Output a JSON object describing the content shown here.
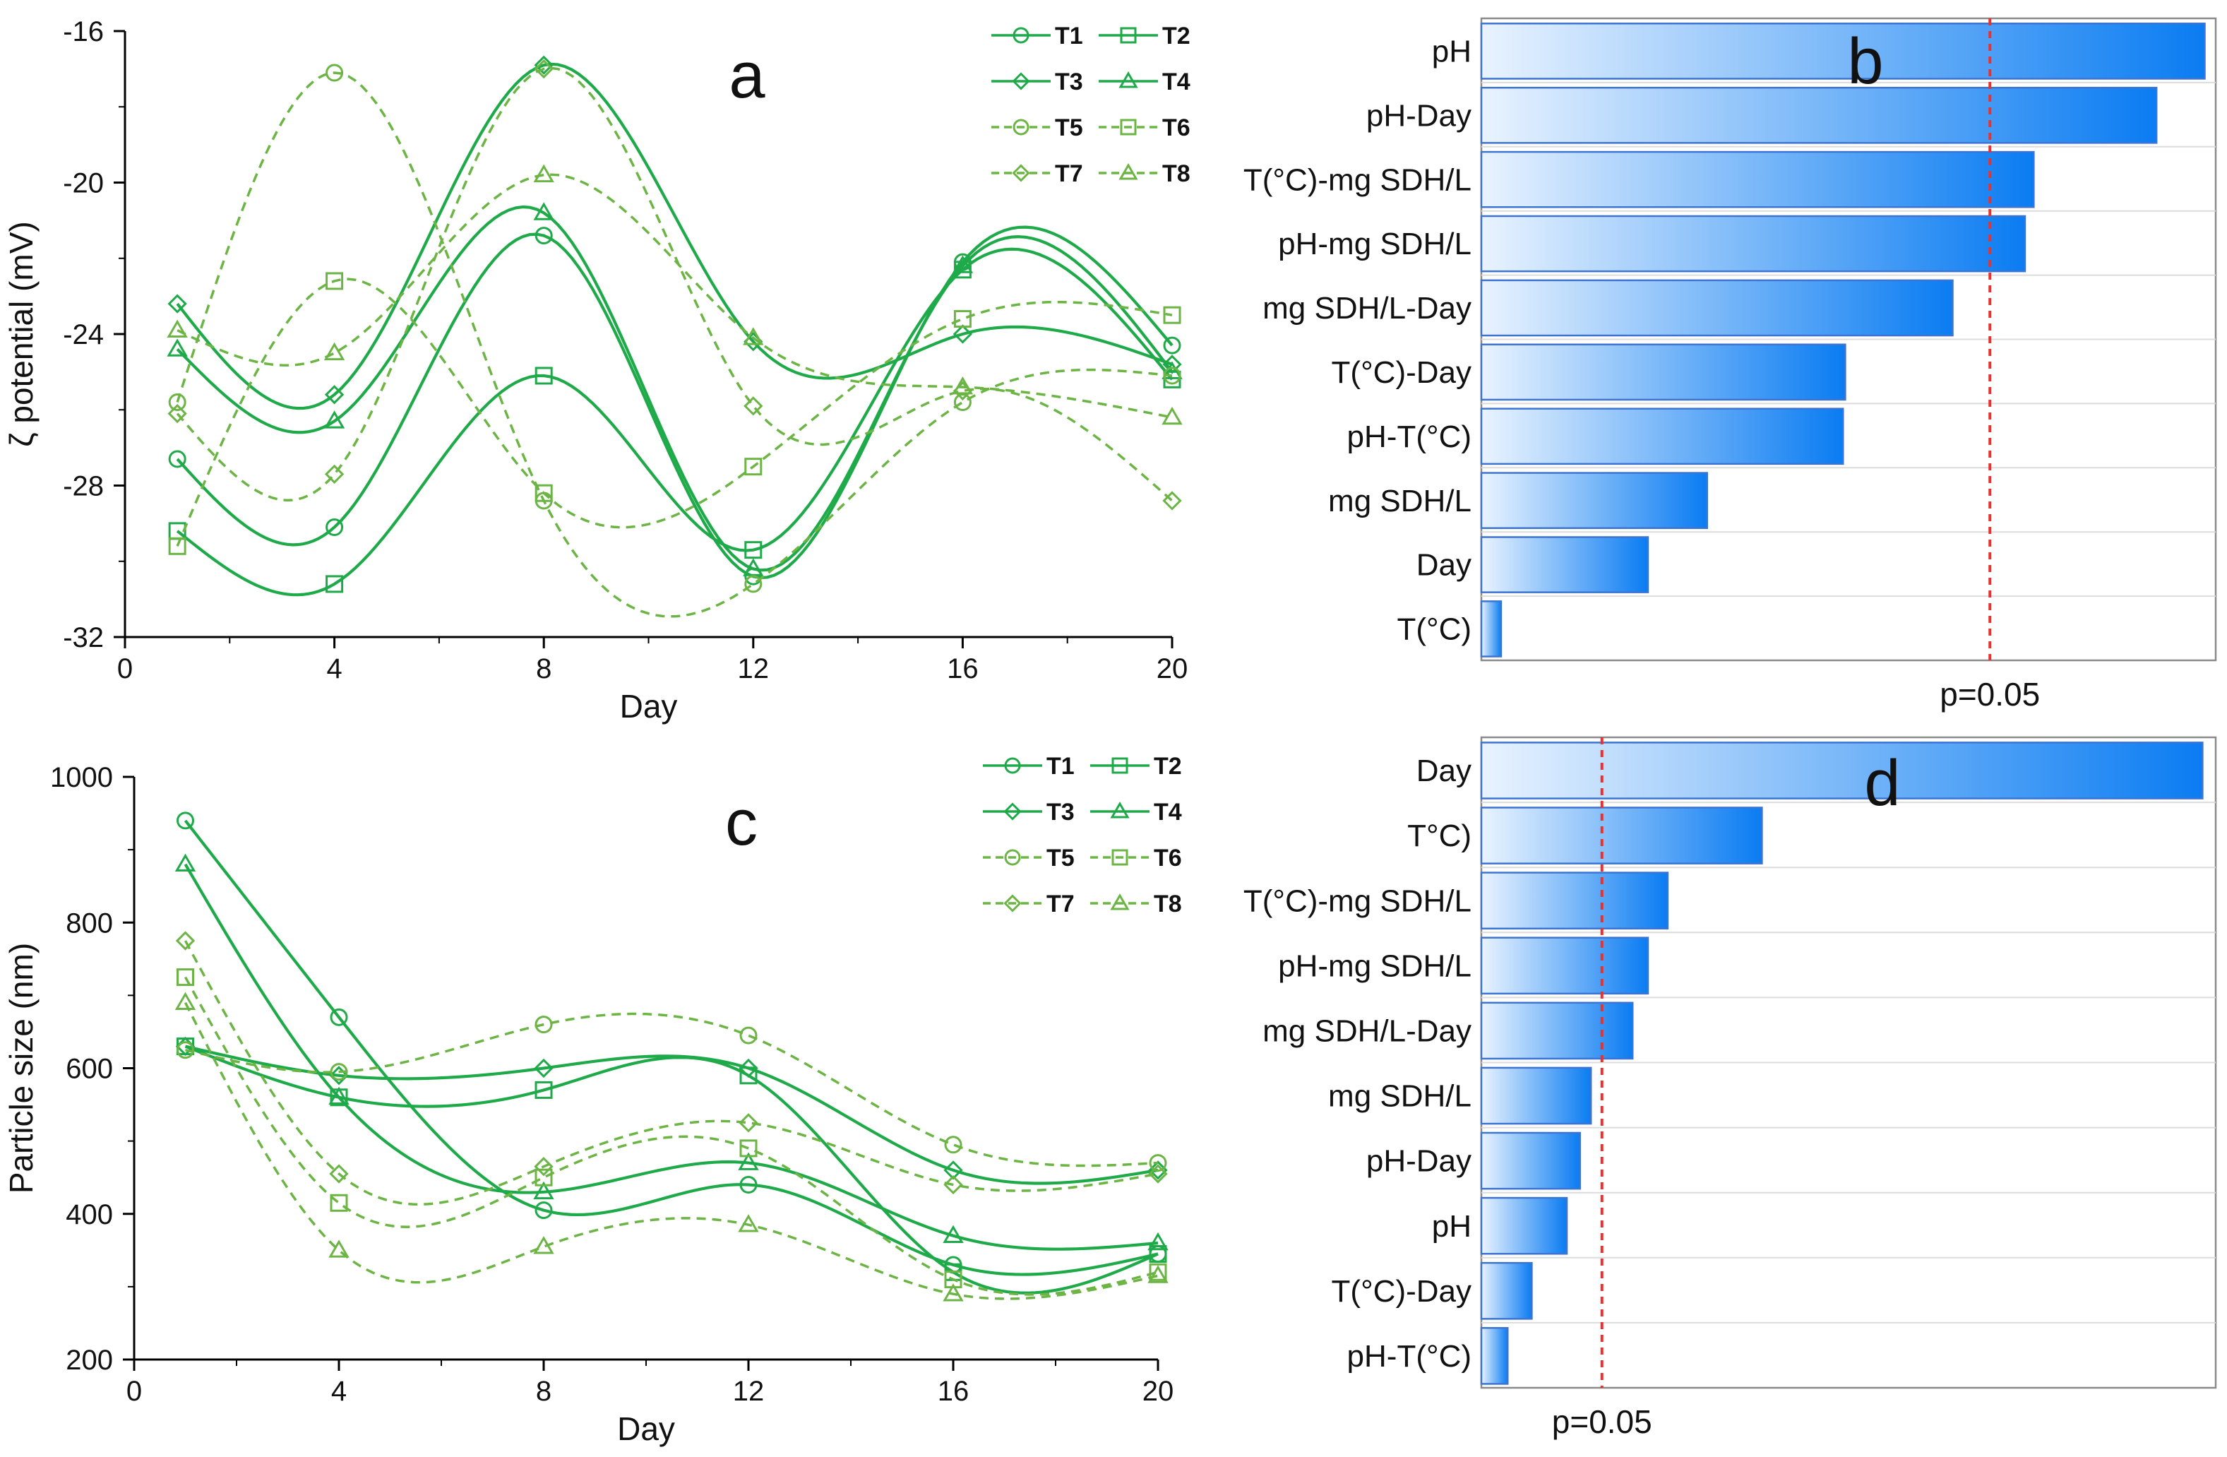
{
  "figure": {
    "colors": {
      "solid": "#1faa4a",
      "dashed": "#6cb545",
      "bar_fill_start": "#e9f3ff",
      "bar_fill_end": "#0a7cf2",
      "bar_edge": "#3d74d2",
      "pline": "#e8322f",
      "axis": "#000000",
      "grid": "#dcdcdc"
    }
  },
  "chart_data": [
    {
      "id": "a",
      "type": "line",
      "panel_label": "a",
      "xlabel": "Day",
      "ylabel": "ζ potential (mV)",
      "xlim": [
        0,
        20
      ],
      "ylim": [
        -32,
        -16
      ],
      "xticks": [
        0,
        4,
        8,
        12,
        16,
        20
      ],
      "yticks": [
        -32,
        -28,
        -24,
        -20,
        -16
      ],
      "x": [
        1,
        4,
        8,
        12,
        16,
        20
      ],
      "legend_position": "top-right",
      "series": [
        {
          "name": "T1",
          "marker": "circle",
          "dash": false,
          "values": [
            -27.3,
            -29.1,
            -21.4,
            -30.4,
            -22.1,
            -24.3
          ]
        },
        {
          "name": "T2",
          "marker": "square",
          "dash": false,
          "values": [
            -29.2,
            -30.6,
            -25.1,
            -29.7,
            -22.3,
            -25.2
          ]
        },
        {
          "name": "T3",
          "marker": "diamond",
          "dash": false,
          "values": [
            -23.2,
            -25.6,
            -16.9,
            -24.2,
            -24.0,
            -24.8
          ]
        },
        {
          "name": "T4",
          "marker": "triangle",
          "dash": false,
          "values": [
            -24.4,
            -26.3,
            -20.8,
            -30.2,
            -22.2,
            -25.0
          ]
        },
        {
          "name": "T5",
          "marker": "circle",
          "dash": true,
          "values": [
            -25.8,
            -17.1,
            -28.4,
            -30.6,
            -25.8,
            -25.1
          ]
        },
        {
          "name": "T6",
          "marker": "square",
          "dash": true,
          "values": [
            -29.6,
            -22.6,
            -28.2,
            -27.5,
            -23.6,
            -23.5
          ]
        },
        {
          "name": "T7",
          "marker": "diamond",
          "dash": true,
          "values": [
            -26.1,
            -27.7,
            -17.0,
            -25.9,
            -25.5,
            -28.4
          ]
        },
        {
          "name": "T8",
          "marker": "triangle",
          "dash": true,
          "values": [
            -23.9,
            -24.5,
            -19.8,
            -24.1,
            -25.4,
            -26.2
          ]
        }
      ]
    },
    {
      "id": "b",
      "type": "bar",
      "orientation": "horizontal",
      "panel_label": "b",
      "categories": [
        "pH",
        "pH-Day",
        "T(°C)-mg SDH/L",
        "pH-mg SDH/L",
        "mg SDH/L-Day",
        "T(°C)-Day",
        "pH-T(°C)",
        "mg SDH/L",
        "Day",
        "T(°C)"
      ],
      "values": [
        33.0,
        30.8,
        25.2,
        24.8,
        21.5,
        16.6,
        16.5,
        10.3,
        7.6,
        0.9
      ],
      "xlim": [
        0,
        33.5
      ],
      "threshold": {
        "label": "p=0.05",
        "value": 23.2
      }
    },
    {
      "id": "c",
      "type": "line",
      "panel_label": "c",
      "xlabel": "Day",
      "ylabel": "Particle size (nm)",
      "xlim": [
        0,
        20
      ],
      "ylim": [
        200,
        1000
      ],
      "xticks": [
        0,
        4,
        8,
        12,
        16,
        20
      ],
      "yticks": [
        200,
        400,
        600,
        800,
        1000
      ],
      "x": [
        1,
        4,
        8,
        12,
        16,
        20
      ],
      "legend_position": "top-right",
      "series": [
        {
          "name": "T1",
          "marker": "circle",
          "dash": false,
          "values": [
            940,
            670,
            405,
            440,
            330,
            345
          ]
        },
        {
          "name": "T2",
          "marker": "square",
          "dash": false,
          "values": [
            630,
            560,
            570,
            590,
            320,
            345
          ]
        },
        {
          "name": "T3",
          "marker": "diamond",
          "dash": false,
          "values": [
            630,
            590,
            600,
            600,
            460,
            460
          ]
        },
        {
          "name": "T4",
          "marker": "triangle",
          "dash": false,
          "values": [
            880,
            560,
            430,
            470,
            370,
            360
          ]
        },
        {
          "name": "T5",
          "marker": "circle",
          "dash": true,
          "values": [
            625,
            595,
            660,
            645,
            495,
            470
          ]
        },
        {
          "name": "T6",
          "marker": "square",
          "dash": true,
          "values": [
            725,
            415,
            450,
            490,
            310,
            320
          ]
        },
        {
          "name": "T7",
          "marker": "diamond",
          "dash": true,
          "values": [
            775,
            455,
            465,
            525,
            440,
            455
          ]
        },
        {
          "name": "T8",
          "marker": "triangle",
          "dash": true,
          "values": [
            690,
            350,
            355,
            385,
            290,
            315
          ]
        }
      ]
    },
    {
      "id": "d",
      "type": "bar",
      "orientation": "horizontal",
      "panel_label": "d",
      "categories": [
        "Day",
        "T°C)",
        "T(°C)-mg SDH/L",
        "pH-mg SDH/L",
        "mg SDH/L-Day",
        "mg SDH/L",
        "pH-Day",
        "pH",
        "T(°C)-Day",
        "pH-T(°C)"
      ],
      "values": [
        32.9,
        12.8,
        8.5,
        7.6,
        6.9,
        5.0,
        4.5,
        3.9,
        2.3,
        1.2
      ],
      "xlim": [
        0,
        33.5
      ],
      "threshold": {
        "label": "p=0.05",
        "value": 5.5
      }
    }
  ]
}
